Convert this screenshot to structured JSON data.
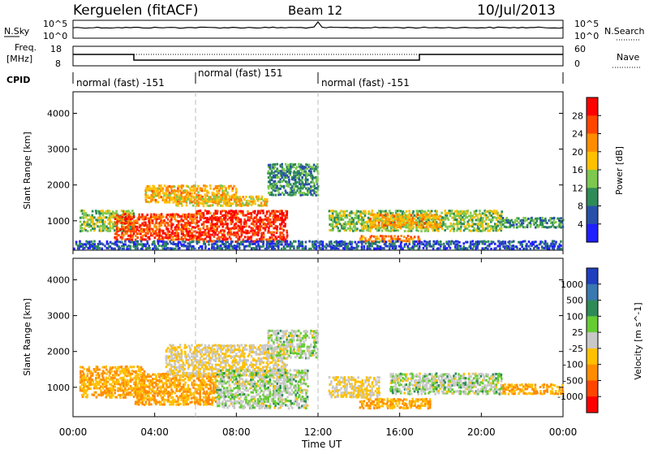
{
  "header": {
    "station": "Kerguelen (fitACF)",
    "beam": "Beam 12",
    "date": "10/Jul/2013"
  },
  "noise_panel": {
    "left_label": "N.Sky",
    "right_label": "N.Search",
    "left_ticks": [
      "10^5",
      "10^0"
    ],
    "right_ticks": [
      "10^5",
      "10^0"
    ]
  },
  "freq_panel": {
    "left_label_1": "Freq.",
    "left_label_2": "[MHz]",
    "right_label": "Nave",
    "left_ticks": [
      "18",
      "8"
    ],
    "right_ticks": [
      "60",
      "0"
    ]
  },
  "cpid": {
    "label": "CPID",
    "segments": [
      {
        "text": "normal (fast) -151",
        "start_hr": 0,
        "end_hr": 6
      },
      {
        "text": "normal (fast) 151",
        "start_hr": 6,
        "end_hr": 12
      },
      {
        "text": "normal (fast) -151",
        "start_hr": 12,
        "end_hr": 24
      }
    ]
  },
  "x_axis": {
    "label": "Time UT",
    "ticks": [
      "00:00",
      "04:00",
      "08:00",
      "12:00",
      "16:00",
      "20:00",
      "00:00"
    ]
  },
  "chart_data": [
    {
      "type": "heatmap",
      "title": "",
      "xlabel": "",
      "ylabel": "Slant Range [km]",
      "x_range_hours": [
        0,
        24
      ],
      "ylim": [
        180,
        4600
      ],
      "y_ticks": [
        "1000",
        "2000",
        "3000",
        "4000"
      ],
      "colorbar": {
        "label": "Power [dB]",
        "ticks": [
          "4",
          "8",
          "12",
          "16",
          "20",
          "24",
          "28"
        ],
        "range": [
          0,
          30
        ],
        "colors": [
          "#1f1fff",
          "#2850a8",
          "#2e8b57",
          "#7ec850",
          "#ffc000",
          "#ff8c00",
          "#ff4500",
          "#ff0000"
        ]
      },
      "regions": [
        {
          "t0": 0.3,
          "t1": 3.0,
          "r0": 700,
          "r1": 1300,
          "v": 14
        },
        {
          "t0": 2.0,
          "t1": 6.0,
          "r0": 450,
          "r1": 1200,
          "v": 26
        },
        {
          "t0": 3.5,
          "t1": 8.0,
          "r0": 1500,
          "r1": 2000,
          "v": 20
        },
        {
          "t0": 6.0,
          "t1": 10.5,
          "r0": 400,
          "r1": 1300,
          "v": 28
        },
        {
          "t0": 5.0,
          "t1": 9.5,
          "r0": 1400,
          "r1": 1700,
          "v": 18
        },
        {
          "t0": 9.5,
          "t1": 12.0,
          "r0": 1700,
          "r1": 2600,
          "v": 10
        },
        {
          "t0": 12.5,
          "t1": 21.0,
          "r0": 700,
          "r1": 1300,
          "v": 14
        },
        {
          "t0": 14.5,
          "t1": 18.0,
          "r0": 800,
          "r1": 1200,
          "v": 20
        },
        {
          "t0": 14.0,
          "t1": 17.0,
          "r0": 400,
          "r1": 600,
          "v": 22
        },
        {
          "t0": 21.0,
          "t1": 24.0,
          "r0": 800,
          "r1": 1100,
          "v": 10
        },
        {
          "t0": 0.0,
          "t1": 24.0,
          "r0": 200,
          "r1": 450,
          "v": 6
        }
      ]
    },
    {
      "type": "heatmap",
      "title": "",
      "xlabel": "Time UT",
      "ylabel": "Slant Range [km]",
      "x_range_hours": [
        0,
        24
      ],
      "ylim": [
        180,
        4600
      ],
      "y_ticks": [
        "1000",
        "2000",
        "3000",
        "4000"
      ],
      "colorbar": {
        "label": "Velocity [m s^-1]",
        "ticks": [
          "1000",
          "500",
          "100",
          "25",
          "-25",
          "-100",
          "-500",
          "-1000"
        ],
        "colors": [
          "#1f3fbf",
          "#3a78b0",
          "#2e8b57",
          "#66cc33",
          "#c8c8c8",
          "#ffc000",
          "#ff8c00",
          "#ff4500",
          "#ff0000"
        ]
      },
      "regions": [
        {
          "t0": 0.3,
          "t1": 3.5,
          "r0": 700,
          "r1": 1600,
          "v": -100
        },
        {
          "t0": 3.0,
          "t1": 7.0,
          "r0": 500,
          "r1": 1400,
          "v": -100
        },
        {
          "t0": 4.5,
          "t1": 10.5,
          "r0": 1300,
          "r1": 2200,
          "v": -25
        },
        {
          "t0": 7.0,
          "t1": 11.5,
          "r0": 400,
          "r1": 1500,
          "v": 0
        },
        {
          "t0": 9.5,
          "t1": 12.0,
          "r0": 1800,
          "r1": 2600,
          "v": 0
        },
        {
          "t0": 14.0,
          "t1": 17.5,
          "r0": 400,
          "r1": 700,
          "v": -100
        },
        {
          "t0": 15.5,
          "t1": 21.0,
          "r0": 800,
          "r1": 1400,
          "v": 0
        },
        {
          "t0": 12.5,
          "t1": 15.0,
          "r0": 700,
          "r1": 1300,
          "v": -25
        },
        {
          "t0": 21.0,
          "t1": 24.0,
          "r0": 800,
          "r1": 1100,
          "v": -100
        }
      ]
    }
  ]
}
